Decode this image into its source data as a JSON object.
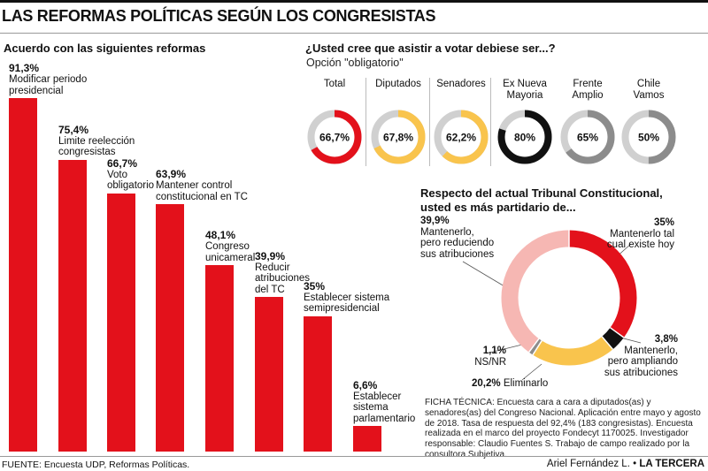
{
  "title": "LAS REFORMAS POLÍTICAS SEGÚN LOS CONGRESISTAS",
  "colors": {
    "red": "#e3111b",
    "yellow": "#f9c44d",
    "black": "#111111",
    "gray": "#8c8c8c",
    "pink": "#f6b7b3",
    "track": "#d0d0d0"
  },
  "chart_data": [
    {
      "type": "bar",
      "title": "Acuerdo con las siguientes reformas",
      "categories": [
        "Modificar periodo presidencial",
        "Limite reelección congresistas",
        "Voto obligatorio",
        "Mantener control constitucional en TC",
        "Congreso unicameral",
        "Reducir atribuciones del TC",
        "Establecer sistema semipresidencial",
        "Establecer sistema parlamentario"
      ],
      "values": [
        91.3,
        75.4,
        66.7,
        63.9,
        48.1,
        39.9,
        35,
        6.6
      ],
      "value_labels": [
        "91,3%",
        "75,4%",
        "66,7%",
        "63,9%",
        "48,1%",
        "39,9%",
        "35%",
        "6,6%"
      ],
      "label_lines": [
        "Modificar periodo\npresidencial",
        "Limite reelección\ncongresistas",
        "Voto\nobligatorio",
        "Mantener control\nconstitucional en TC",
        "Congreso\nunicameral",
        "Reducir\natribuciones\ndel TC",
        "Establecer sistema\nsemipresidencial",
        "Establecer\nsistema\nparlamentario"
      ],
      "ylim": [
        0,
        100
      ]
    },
    {
      "type": "pie",
      "title": "¿Usted cree que asistir a votar debiese ser...?",
      "subtitle": "Opción \"obligatorio\"",
      "categories": [
        "Total",
        "Diputados",
        "Senadores",
        "Ex Nueva Mayoria",
        "Frente Amplio",
        "Chile Vamos"
      ],
      "label_lines": [
        "Total",
        "Diputados",
        "Senadores",
        "Ex Nueva\nMayoria",
        "Frente\nAmplio",
        "Chile\nVamos"
      ],
      "values": [
        66.7,
        67.8,
        62.2,
        80,
        65,
        50
      ],
      "value_labels": [
        "66,7%",
        "67,8%",
        "62,2%",
        "80%",
        "65%",
        "50%"
      ],
      "colors": [
        "#e3111b",
        "#f9c44d",
        "#f9c44d",
        "#111111",
        "#8c8c8c",
        "#8c8c8c"
      ]
    },
    {
      "type": "pie",
      "title": "Respecto del actual Tribunal Constitucional,",
      "title_line2": "usted es más partidario de...",
      "slices": [
        {
          "label": "Mantenerlo tal\ncual existe hoy",
          "value": 35,
          "value_label": "35%",
          "color": "#e3111b"
        },
        {
          "label": "Mantenerlo,\npero ampliando\nsus atribuciones",
          "value": 3.8,
          "value_label": "3,8%",
          "color": "#111111"
        },
        {
          "label": "Eliminarlo",
          "value": 20.2,
          "value_label": "20,2%",
          "color": "#f9c44d"
        },
        {
          "label": "NS/NR",
          "value": 1.1,
          "value_label": "1,1%",
          "color": "#8c8c8c"
        },
        {
          "label": "Mantenerlo,\npero reduciendo\nsus atribuciones",
          "value": 39.9,
          "value_label": "39,9%",
          "color": "#f6b7b3"
        }
      ]
    }
  ],
  "ficha": "FICHA TÉCNICA: Encuesta cara a cara a diputados(as) y senadores(as) del Congreso Nacional. Aplicación entre mayo y agosto de 2018. Tasa de respuesta del 92,4% (183 congresistas).  Encuesta realizada en el marco del proyecto Fondecyt 1170025. Investigador responsable: Claudio Fuentes S. Trabajo de campo realizado por la consultora Subjetiva.",
  "footer": {
    "source": "FUENTE: Encuesta UDP, Reformas Políticas.",
    "author": "Ariel Fernández L.",
    "separator": " • ",
    "outlet": "LA TERCERA"
  }
}
